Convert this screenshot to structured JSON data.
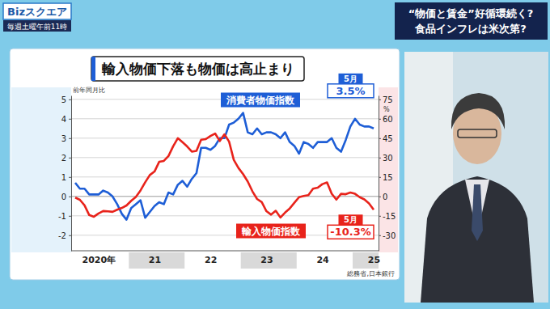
{
  "page": {
    "logo": "Bizスクエア",
    "schedule": "毎週土曜午前11時",
    "headline": [
      "“物価と賃金”好循環続く?",
      "食品インフレは米次第?"
    ]
  },
  "chart_data": {
    "type": "line",
    "title": "輸入物価下落も物価は高止まり",
    "y_label": "前年同月比",
    "y2_label": "%",
    "source": "総務省,日本銀行",
    "categories": [
      null,
      null,
      null,
      null,
      null,
      "2020年",
      null,
      null,
      null,
      null,
      null,
      null,
      null,
      null,
      null,
      null,
      null,
      "21",
      null,
      null,
      null,
      null,
      null,
      null,
      null,
      null,
      null,
      null,
      null,
      "22",
      null,
      null,
      null,
      null,
      null,
      null,
      null,
      null,
      null,
      null,
      null,
      "23",
      null,
      null,
      null,
      null,
      null,
      null,
      null,
      null,
      null,
      null,
      null,
      "24",
      null,
      null,
      null,
      null,
      null,
      null,
      null,
      null,
      null,
      null,
      "25"
    ],
    "series": [
      {
        "name": "消費者物価指数",
        "color": "#1e5ed6",
        "values": [
          0.7,
          0.4,
          0.4,
          0.1,
          0.1,
          0.1,
          0.3,
          0.2,
          0.0,
          -0.4,
          -0.9,
          -1.2,
          -0.6,
          -0.4,
          -0.2,
          -1.1,
          -0.8,
          -0.5,
          -0.3,
          -0.4,
          0.2,
          0.1,
          0.6,
          0.8,
          0.5,
          0.9,
          1.2,
          2.5,
          2.5,
          2.4,
          2.6,
          3.0,
          3.0,
          3.7,
          3.8,
          4.0,
          4.3,
          3.3,
          3.2,
          3.5,
          3.2,
          3.3,
          3.3,
          3.2,
          3.0,
          3.3,
          2.8,
          2.6,
          2.2,
          2.8,
          2.7,
          2.5,
          2.8,
          2.8,
          2.8,
          3.0,
          2.5,
          2.3,
          2.9,
          3.6,
          4.0,
          3.7,
          3.6,
          3.6,
          3.5
        ],
        "value_labels": [
          null,
          null,
          null,
          null,
          null,
          null,
          null,
          null,
          null,
          null,
          null,
          null,
          null,
          null,
          null,
          null,
          null,
          null,
          null,
          null,
          null,
          null,
          null,
          null,
          null,
          null,
          null,
          null,
          null,
          null,
          null,
          null,
          null,
          null,
          null,
          null,
          null,
          null,
          null,
          null,
          null,
          null,
          null,
          null,
          null,
          null,
          null,
          null,
          null,
          null,
          null,
          null,
          null,
          null,
          null,
          null,
          null,
          null,
          null,
          null,
          null,
          null,
          null,
          null,
          "3.5%"
        ]
      },
      {
        "name": "輸入物価指数",
        "color": "#e8231b",
        "axis": "y2",
        "values": [
          -0.9,
          -2.6,
          -6.9,
          -14.4,
          -15.7,
          -13.2,
          -11.3,
          -11.5,
          -11.9,
          -10.3,
          -8.9,
          -7.0,
          -3.4,
          -0.4,
          4.6,
          10.9,
          16.5,
          19.2,
          26.7,
          27.4,
          31.2,
          38.7,
          45.0,
          41.9,
          38.6,
          34.6,
          35.2,
          43.8,
          44.3,
          46.7,
          48.6,
          42.8,
          48.0,
          42.3,
          28.2,
          22.0,
          17.2,
          11.4,
          3.9,
          -2.0,
          -4.4,
          -11.4,
          -14.1,
          -11.1,
          -16.3,
          -12.5,
          -9.3,
          -4.9,
          -0.6,
          0.3,
          1.0,
          6.0,
          6.7,
          9.5,
          10.8,
          2.1,
          -2.5,
          2.0,
          1.7,
          3.0,
          2.0,
          -0.6,
          -2.3,
          -5.4,
          -10.3
        ],
        "value_labels": [
          null,
          null,
          null,
          null,
          null,
          null,
          null,
          null,
          null,
          null,
          null,
          null,
          null,
          null,
          null,
          null,
          null,
          null,
          null,
          null,
          null,
          null,
          null,
          null,
          null,
          null,
          null,
          null,
          null,
          null,
          null,
          null,
          null,
          null,
          null,
          null,
          null,
          null,
          null,
          null,
          null,
          null,
          null,
          null,
          null,
          null,
          null,
          null,
          null,
          null,
          null,
          null,
          null,
          null,
          null,
          null,
          null,
          null,
          null,
          null,
          null,
          null,
          null,
          null,
          "-10.3%"
        ]
      }
    ],
    "annotations": [
      {
        "text": "5月",
        "series": "消費者物価指数"
      },
      {
        "text": "5月",
        "series": "輸入物価指数"
      }
    ],
    "ylim": [
      -2.8,
      5.2
    ],
    "yticks": [
      -2,
      -1,
      0,
      1,
      2,
      3,
      4,
      5
    ],
    "y2lim": [
      -42,
      78
    ],
    "y2ticks": [
      -30,
      -15,
      0,
      15,
      30,
      45,
      60,
      75
    ],
    "grid": true
  }
}
